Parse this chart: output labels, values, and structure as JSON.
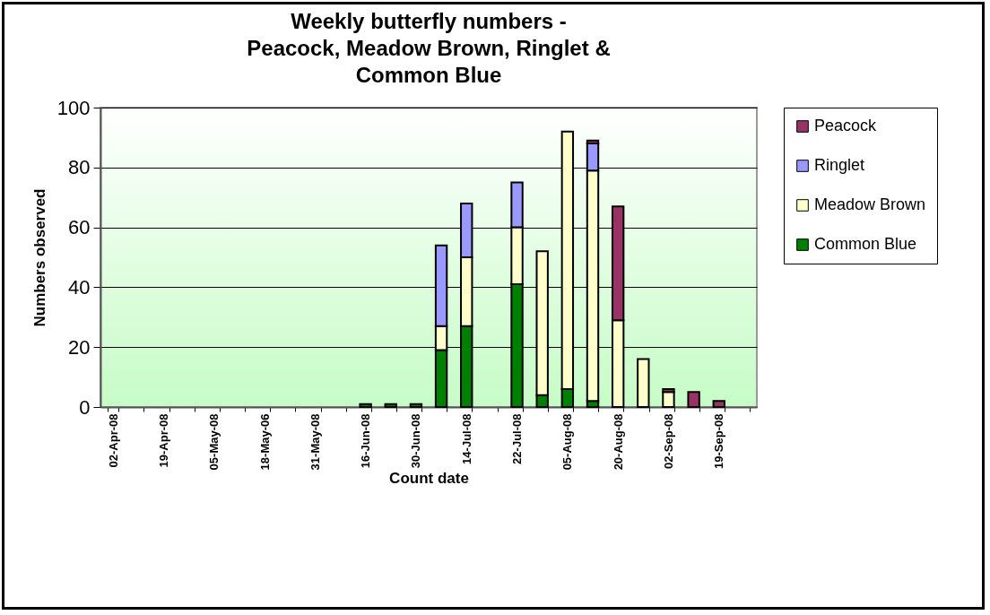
{
  "chart_data": {
    "type": "bar",
    "title": "Weekly butterfly numbers -\nPeacock, Meadow Brown, Ringlet &\nCommon Blue",
    "xlabel": "Count date",
    "ylabel": "Numbers observed",
    "categories": [
      "02-Apr-08",
      null,
      "19-Apr-08",
      null,
      "05-May-08",
      null,
      "18-May-06",
      null,
      "31-May-08",
      null,
      "16-Jun-08",
      null,
      "30-Jun-08",
      null,
      "14-Jul-08",
      null,
      "22-Jul-08",
      null,
      "05-Aug-08",
      null,
      "20-Aug-08",
      null,
      "02-Sep-08",
      null,
      "19-Sep-08",
      null
    ],
    "stacked": true,
    "ylim": [
      0,
      100
    ],
    "yticks": [
      0,
      20,
      40,
      60,
      80,
      100
    ],
    "grid": "y",
    "legend": "right",
    "series": [
      {
        "name": "Common Blue",
        "color": "#008000",
        "values": [
          null,
          null,
          null,
          null,
          null,
          null,
          null,
          null,
          null,
          null,
          1,
          1,
          1,
          19,
          27,
          null,
          41,
          4,
          6,
          2,
          null,
          null,
          null,
          null,
          null,
          null
        ]
      },
      {
        "name": "Meadow Brown",
        "color": "#ffffcc",
        "values": [
          null,
          null,
          null,
          null,
          null,
          null,
          null,
          null,
          null,
          null,
          null,
          null,
          null,
          8,
          23,
          null,
          19,
          48,
          86,
          77,
          29,
          16,
          5,
          null,
          null,
          null
        ]
      },
      {
        "name": "Ringlet",
        "color": "#9999ff",
        "values": [
          null,
          null,
          null,
          null,
          null,
          null,
          null,
          null,
          null,
          null,
          null,
          null,
          null,
          27,
          18,
          null,
          15,
          null,
          null,
          9,
          null,
          null,
          null,
          null,
          null,
          null
        ]
      },
      {
        "name": "Peacock",
        "color": "#993366",
        "values": [
          null,
          null,
          null,
          null,
          null,
          null,
          null,
          null,
          null,
          null,
          null,
          null,
          null,
          null,
          null,
          null,
          null,
          null,
          null,
          1,
          38,
          null,
          1,
          5,
          2,
          null
        ]
      }
    ]
  }
}
